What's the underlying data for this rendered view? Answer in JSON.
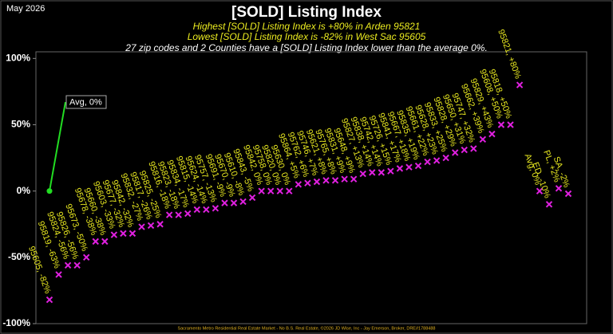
{
  "chart_data": {
    "type": "scatter",
    "date": "May 2026",
    "title": "[SOLD] Listing Index",
    "subtitles": [
      "Highest [SOLD] Listing Index is +80% in Arden 95821",
      "Lowest [SOLD] Listing Index is -82% in West Sac 95605"
    ],
    "note": "27 zip codes and 2 Counties have a [SOLD] Listing Index lower than the average 0%.",
    "footer": "Sacramento Metro Residential Real Estate Market - No B.S. Real Estate, ©2026 JD Wise, Inc - Jay Emerson, Broker, DRE#1788488",
    "ylim": [
      -100,
      105
    ],
    "yticks": [
      {
        "value": 100,
        "label": "100%"
      },
      {
        "value": 50,
        "label": "50%"
      },
      {
        "value": 0,
        "label": "0%"
      },
      {
        "value": -50,
        "label": "-50%"
      },
      {
        "value": -100,
        "label": "-100%"
      }
    ],
    "average": {
      "label": "Avg, 0%",
      "value": 0,
      "color": "#22dd22"
    },
    "series": [
      {
        "name": "Zip codes",
        "color": "#e020e0",
        "values": [
          -82,
          -63,
          -56,
          -56,
          -50,
          -38,
          -38,
          -33,
          -32,
          -32,
          -27,
          -26,
          -25,
          -18,
          -18,
          -17,
          -14,
          -14,
          -13,
          -9,
          -9,
          -8,
          -5,
          0,
          0,
          0,
          0,
          5,
          6,
          7,
          8,
          8,
          9,
          9,
          13,
          14,
          14,
          15,
          17,
          18,
          19,
          22,
          23,
          25,
          29,
          31,
          32,
          39,
          43,
          50,
          50,
          80
        ],
        "value_labels": [
          "95605, -82%",
          "95819, -63%",
          "95824, -56%",
          "95826, -56%",
          "95673, -50%",
          "95678, -38%",
          "95660, -38%",
          "95603, -33%",
          "95677, -32%",
          "95842, -32%",
          "95832, -27%",
          "95817, -26%",
          "95825, -25%",
          "95816, -18%",
          "95823, -18%",
          "95834, -17%",
          "95815, -14%",
          "95624, -14%",
          "95757, -13%",
          "95691, -9%",
          "95670, -9%",
          "95610, -8%",
          "95843, -5%",
          "95842, 0%",
          "95758, 0%",
          "95820, 0%",
          "95630, 0%",
          "95864, +5%",
          "95762, +6%",
          "95746, +7%",
          "95621, +8%",
          "95765, +8%",
          "95831, +9%",
          "95648, +9%",
          "95827, +13%",
          "95838, +14%",
          "95742, +14%",
          "95726, +15%",
          "95841, +17%",
          "95667, +18%",
          "95835, +19%",
          "95661, +22%",
          "95628, +23%",
          "95833, +25%",
          "95828, +29%",
          "95650, +31%",
          "95747, +32%",
          "95662, +39%",
          "95829, +43%",
          "95608, +50%",
          "95818, +50%",
          "95821, +80%"
        ]
      },
      {
        "name": "Counties",
        "color": "#e020e0",
        "values": [
          0,
          -10,
          2,
          -2
        ],
        "value_labels": [
          "Avg, 0%",
          "ED, -10%",
          "PL, +2%",
          "SA, -2%"
        ]
      }
    ]
  }
}
